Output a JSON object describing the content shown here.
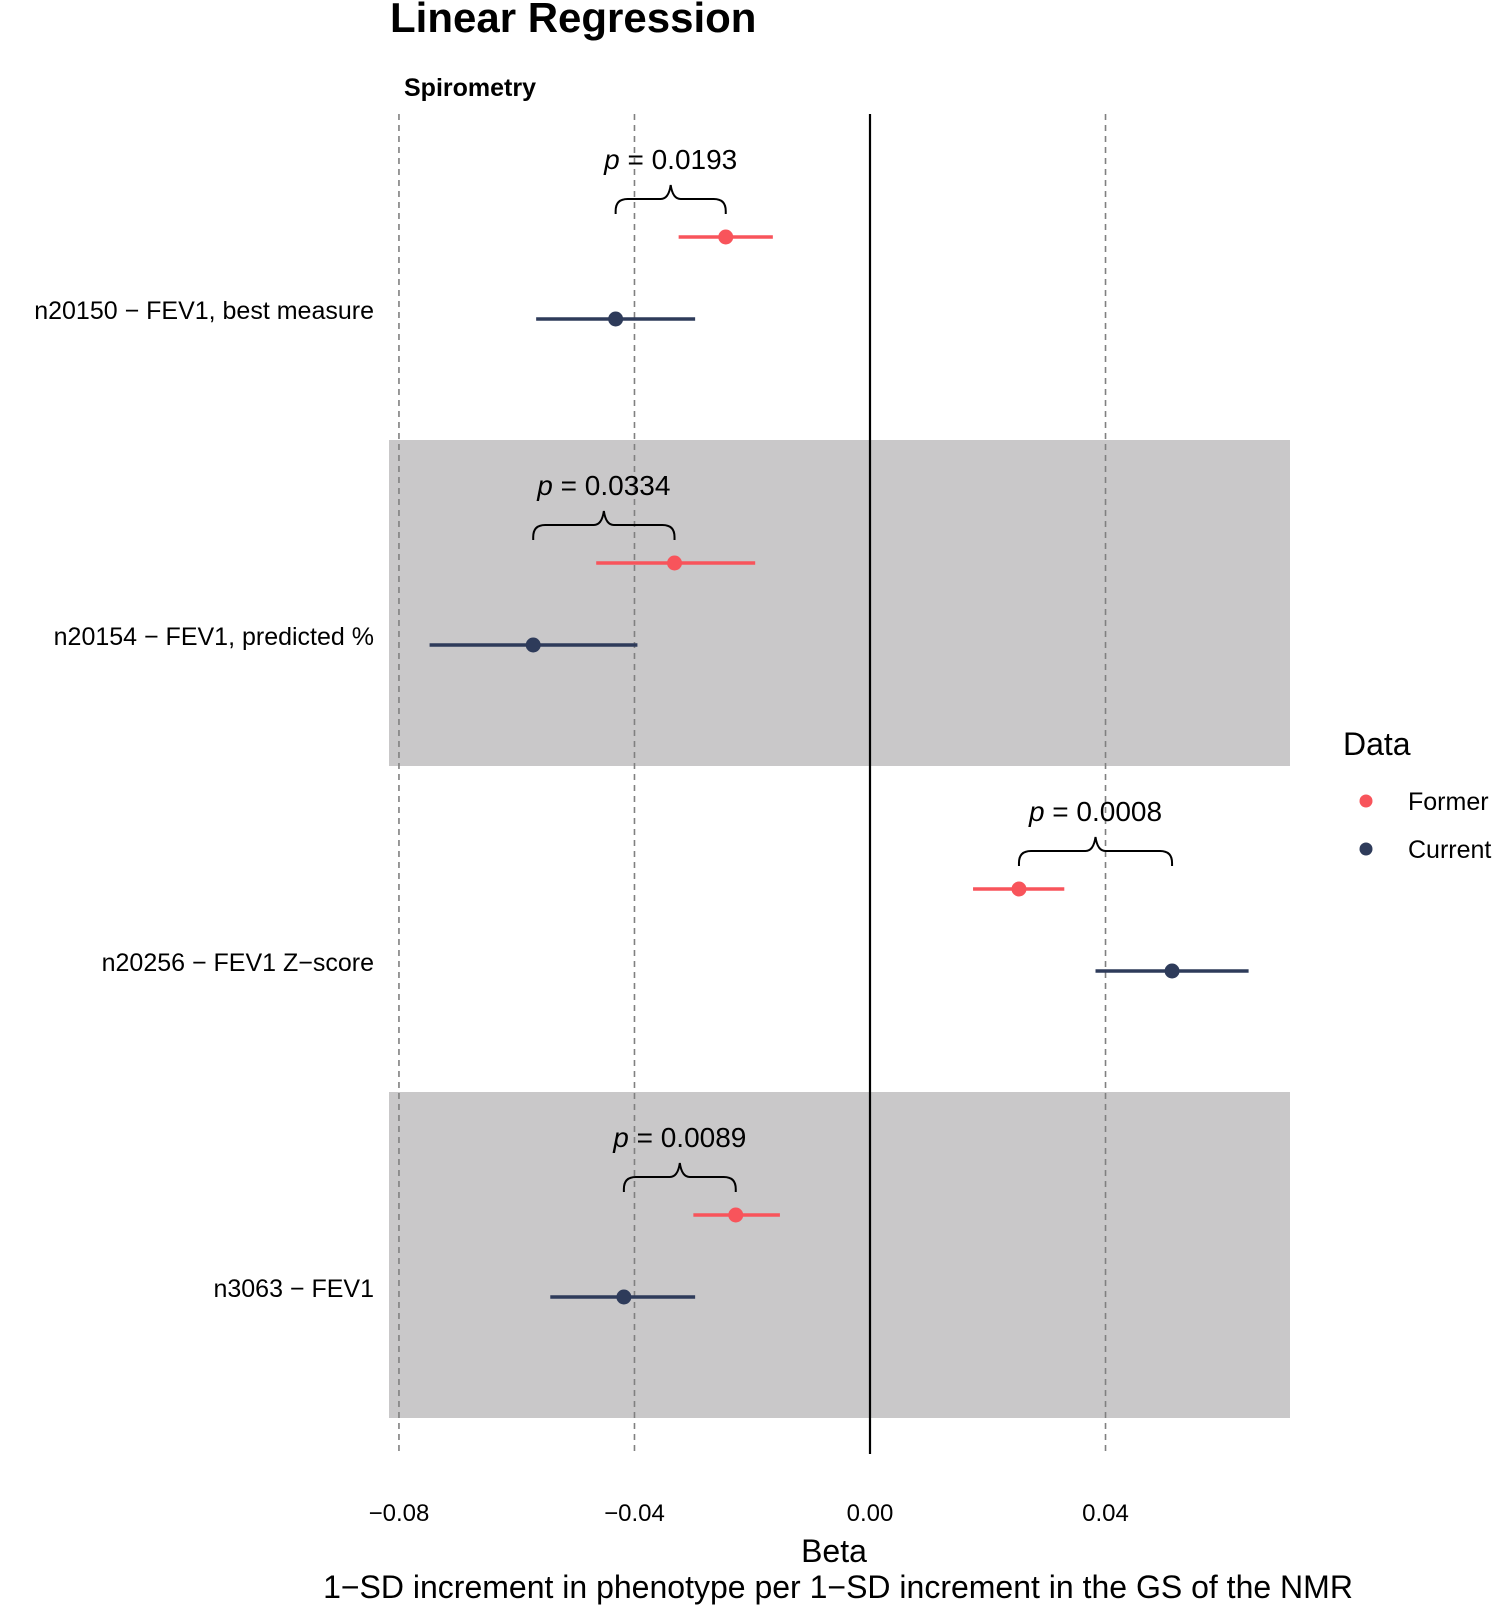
{
  "chart_data": {
    "type": "forest",
    "title": "Linear Regression",
    "facet_label": "Spirometry",
    "xlabel": "Beta",
    "xlabel_sub": "1−SD increment in phenotype per 1−SD increment in the GS of the NMR",
    "xlim": [
      -0.0865,
      0.0715
    ],
    "x_ticks": [
      -0.08,
      -0.04,
      0.0,
      0.04
    ],
    "x_tick_labels": [
      "−0.08",
      "−0.04",
      "0.00",
      "0.04"
    ],
    "reference_line": 0,
    "dashed_lines": [
      -0.08,
      -0.04,
      0.04
    ],
    "legend": {
      "title": "Data",
      "position": "right",
      "entries": [
        {
          "name": "Former",
          "color": "#f8545b"
        },
        {
          "name": "Current",
          "color": "#2e3b5a"
        }
      ]
    },
    "categories": [
      {
        "label": "n20150 − FEV1, best measure",
        "shaded": false,
        "p_symbol": "p",
        "p_value": "= 0.0193",
        "former": {
          "beta": -0.0245,
          "lo": -0.0325,
          "hi": -0.0165
        },
        "current": {
          "beta": -0.0432,
          "lo": -0.0567,
          "hi": -0.0297
        }
      },
      {
        "label": "n20154 − FEV1, predicted %",
        "shaded": true,
        "p_symbol": "p",
        "p_value": "= 0.0334",
        "former": {
          "beta": -0.0332,
          "lo": -0.0465,
          "hi": -0.0195
        },
        "current": {
          "beta": -0.0572,
          "lo": -0.0748,
          "hi": -0.0395
        }
      },
      {
        "label": "n20256 − FEV1 Z−score",
        "shaded": false,
        "p_symbol": "p",
        "p_value": "= 0.0008",
        "former": {
          "beta": 0.0253,
          "lo": 0.0175,
          "hi": 0.033
        },
        "current": {
          "beta": 0.0513,
          "lo": 0.0383,
          "hi": 0.0643
        }
      },
      {
        "label": "n3063 − FEV1",
        "shaded": true,
        "p_symbol": "p",
        "p_value": "= 0.0089",
        "former": {
          "beta": -0.0228,
          "lo": -0.03,
          "hi": -0.0153
        },
        "current": {
          "beta": -0.0418,
          "lo": -0.0543,
          "hi": -0.0297
        }
      }
    ]
  }
}
